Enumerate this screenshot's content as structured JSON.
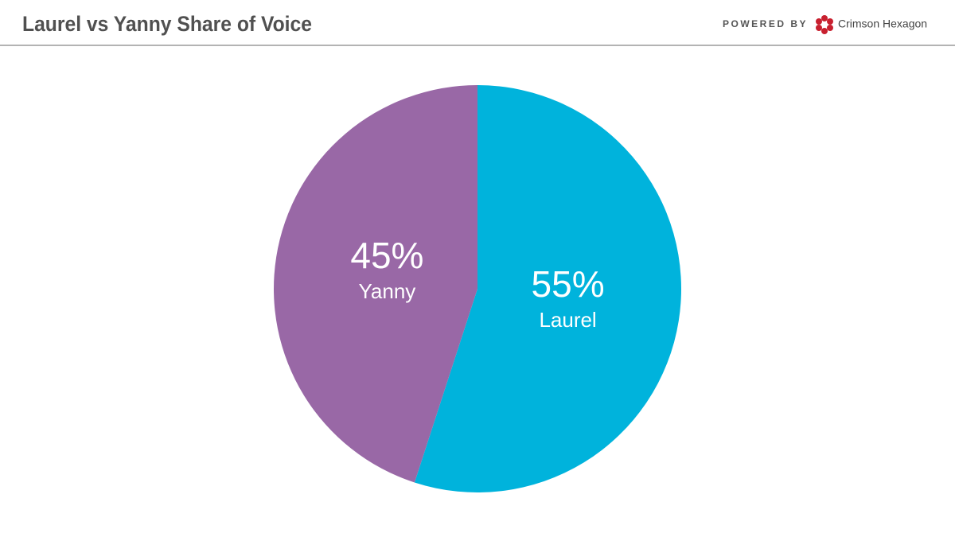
{
  "chart_data": {
    "type": "pie",
    "title": "Laurel vs Yanny Share of Voice",
    "categories": [
      "Laurel",
      "Yanny"
    ],
    "values": [
      55,
      45
    ],
    "value_labels": [
      "55%",
      "45%"
    ],
    "colors": [
      "#00b3dc",
      "#9968a6"
    ]
  },
  "branding": {
    "powered_by": "POWERED BY",
    "brand": "Crimson Hexagon"
  }
}
